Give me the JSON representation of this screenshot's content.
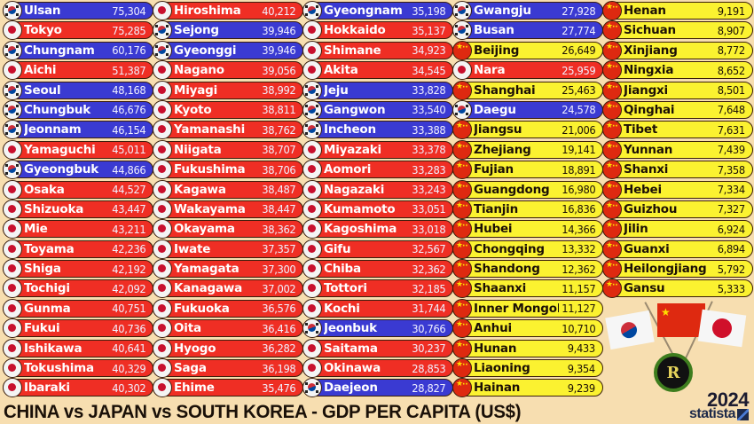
{
  "title": "CHINA vs JAPAN vs SOUTH KOREA - GDP PER CAPITA (US$)",
  "year": "2024",
  "source": "statista",
  "badge_letter": "R",
  "colors": {
    "south_korea": "#3a3ad2",
    "japan": "#ef2e24",
    "china": "#fbf230",
    "background": "#f7deb0"
  },
  "columns": [
    [
      {
        "name": "Ulsan",
        "value": "75,304",
        "country": "kr"
      },
      {
        "name": "Tokyo",
        "value": "75,285",
        "country": "jp"
      },
      {
        "name": "Chungnam",
        "value": "60,176",
        "country": "kr"
      },
      {
        "name": "Aichi",
        "value": "51,387",
        "country": "jp"
      },
      {
        "name": "Seoul",
        "value": "48,168",
        "country": "kr"
      },
      {
        "name": "Chungbuk",
        "value": "46,676",
        "country": "kr"
      },
      {
        "name": "Jeonnam",
        "value": "46,154",
        "country": "kr"
      },
      {
        "name": "Yamaguchi",
        "value": "45,011",
        "country": "jp"
      },
      {
        "name": "Gyeongbuk",
        "value": "44,866",
        "country": "kr"
      },
      {
        "name": "Osaka",
        "value": "44,527",
        "country": "jp"
      },
      {
        "name": "Shizuoka",
        "value": "43,447",
        "country": "jp"
      },
      {
        "name": "Mie",
        "value": "43,211",
        "country": "jp"
      },
      {
        "name": "Toyama",
        "value": "42,236",
        "country": "jp"
      },
      {
        "name": "Shiga",
        "value": "42,192",
        "country": "jp"
      },
      {
        "name": "Tochigi",
        "value": "42,092",
        "country": "jp"
      },
      {
        "name": "Gunma",
        "value": "40,751",
        "country": "jp"
      },
      {
        "name": "Fukui",
        "value": "40,736",
        "country": "jp"
      },
      {
        "name": "Ishikawa",
        "value": "40,641",
        "country": "jp"
      },
      {
        "name": "Tokushima",
        "value": "40,329",
        "country": "jp"
      },
      {
        "name": "Ibaraki",
        "value": "40,302",
        "country": "jp"
      }
    ],
    [
      {
        "name": "Hiroshima",
        "value": "40,212",
        "country": "jp"
      },
      {
        "name": "Sejong",
        "value": "39,946",
        "country": "kr"
      },
      {
        "name": "Gyeonggi",
        "value": "39,946",
        "country": "kr"
      },
      {
        "name": "Nagano",
        "value": "39,056",
        "country": "jp"
      },
      {
        "name": "Miyagi",
        "value": "38,992",
        "country": "jp"
      },
      {
        "name": "Kyoto",
        "value": "38,811",
        "country": "jp"
      },
      {
        "name": "Yamanashi",
        "value": "38,762",
        "country": "jp"
      },
      {
        "name": "Niigata",
        "value": "38,707",
        "country": "jp"
      },
      {
        "name": "Fukushima",
        "value": "38,706",
        "country": "jp"
      },
      {
        "name": "Kagawa",
        "value": "38,487",
        "country": "jp"
      },
      {
        "name": "Wakayama",
        "value": "38,447",
        "country": "jp"
      },
      {
        "name": "Okayama",
        "value": "38,362",
        "country": "jp"
      },
      {
        "name": "Iwate",
        "value": "37,357",
        "country": "jp"
      },
      {
        "name": "Yamagata",
        "value": "37,300",
        "country": "jp"
      },
      {
        "name": "Kanagawa",
        "value": "37,002",
        "country": "jp"
      },
      {
        "name": "Fukuoka",
        "value": "36,576",
        "country": "jp"
      },
      {
        "name": "Oita",
        "value": "36,416",
        "country": "jp"
      },
      {
        "name": "Hyogo",
        "value": "36,282",
        "country": "jp"
      },
      {
        "name": "Saga",
        "value": "36,198",
        "country": "jp"
      },
      {
        "name": "Ehime",
        "value": "35,476",
        "country": "jp"
      }
    ],
    [
      {
        "name": "Gyeongnam",
        "value": "35,198",
        "country": "kr"
      },
      {
        "name": "Hokkaido",
        "value": "35,137",
        "country": "jp"
      },
      {
        "name": "Shimane",
        "value": "34,923",
        "country": "jp"
      },
      {
        "name": "Akita",
        "value": "34,545",
        "country": "jp"
      },
      {
        "name": "Jeju",
        "value": "33,828",
        "country": "kr"
      },
      {
        "name": "Gangwon",
        "value": "33,540",
        "country": "kr"
      },
      {
        "name": "Incheon",
        "value": "33,388",
        "country": "kr"
      },
      {
        "name": "Miyazaki",
        "value": "33,378",
        "country": "jp"
      },
      {
        "name": "Aomori",
        "value": "33,283",
        "country": "jp"
      },
      {
        "name": "Nagazaki",
        "value": "33,243",
        "country": "jp"
      },
      {
        "name": "Kumamoto",
        "value": "33,051",
        "country": "jp"
      },
      {
        "name": "Kagoshima",
        "value": "33,018",
        "country": "jp"
      },
      {
        "name": "Gifu",
        "value": "32,567",
        "country": "jp"
      },
      {
        "name": "Chiba",
        "value": "32,362",
        "country": "jp"
      },
      {
        "name": "Tottori",
        "value": "32,185",
        "country": "jp"
      },
      {
        "name": "Kochi",
        "value": "31,744",
        "country": "jp"
      },
      {
        "name": "Jeonbuk",
        "value": "30,766",
        "country": "kr"
      },
      {
        "name": "Saitama",
        "value": "30,237",
        "country": "jp"
      },
      {
        "name": "Okinawa",
        "value": "28,853",
        "country": "jp"
      },
      {
        "name": "Daejeon",
        "value": "28,827",
        "country": "kr"
      }
    ],
    [
      {
        "name": "Gwangju",
        "value": "27,928",
        "country": "kr"
      },
      {
        "name": "Busan",
        "value": "27,774",
        "country": "kr"
      },
      {
        "name": "Beijing",
        "value": "26,649",
        "country": "cn"
      },
      {
        "name": "Nara",
        "value": "25,959",
        "country": "jp"
      },
      {
        "name": "Shanghai",
        "value": "25,463",
        "country": "cn"
      },
      {
        "name": "Daegu",
        "value": "24,578",
        "country": "kr"
      },
      {
        "name": "Jiangsu",
        "value": "21,006",
        "country": "cn"
      },
      {
        "name": "Zhejiang",
        "value": "19,141",
        "country": "cn"
      },
      {
        "name": "Fujian",
        "value": "18,891",
        "country": "cn"
      },
      {
        "name": "Guangdong",
        "value": "16,980",
        "country": "cn"
      },
      {
        "name": "Tianjin",
        "value": "16,836",
        "country": "cn"
      },
      {
        "name": "Hubei",
        "value": "14,366",
        "country": "cn"
      },
      {
        "name": "Chongqing",
        "value": "13,332",
        "country": "cn"
      },
      {
        "name": "Shandong",
        "value": "12,362",
        "country": "cn"
      },
      {
        "name": "Shaanxi",
        "value": "11,157",
        "country": "cn"
      },
      {
        "name": "Inner Mongolia",
        "value": "11,127",
        "country": "cn"
      },
      {
        "name": "Anhui",
        "value": "10,710",
        "country": "cn"
      },
      {
        "name": "Hunan",
        "value": "9,433",
        "country": "cn"
      },
      {
        "name": "Liaoning",
        "value": "9,354",
        "country": "cn"
      },
      {
        "name": "Hainan",
        "value": "9,239",
        "country": "cn"
      }
    ],
    [
      {
        "name": "Henan",
        "value": "9,191",
        "country": "cn"
      },
      {
        "name": "Sichuan",
        "value": "8,907",
        "country": "cn"
      },
      {
        "name": "Xinjiang",
        "value": "8,772",
        "country": "cn"
      },
      {
        "name": "Ningxia",
        "value": "8,652",
        "country": "cn"
      },
      {
        "name": "Jiangxi",
        "value": "8,501",
        "country": "cn"
      },
      {
        "name": "Qinghai",
        "value": "7,648",
        "country": "cn"
      },
      {
        "name": "Tibet",
        "value": "7,631",
        "country": "cn"
      },
      {
        "name": "Yunnan",
        "value": "7,439",
        "country": "cn"
      },
      {
        "name": "Shanxi",
        "value": "7,358",
        "country": "cn"
      },
      {
        "name": "Hebei",
        "value": "7,334",
        "country": "cn"
      },
      {
        "name": "Guizhou",
        "value": "7,327",
        "country": "cn"
      },
      {
        "name": "Jilin",
        "value": "6,924",
        "country": "cn"
      },
      {
        "name": "Guanxi",
        "value": "6,894",
        "country": "cn"
      },
      {
        "name": "Heilongjiang",
        "value": "5,792",
        "country": "cn"
      },
      {
        "name": "Gansu",
        "value": "5,333",
        "country": "cn"
      }
    ]
  ],
  "chart_data": {
    "type": "bar",
    "title": "CHINA vs JAPAN vs SOUTH KOREA - GDP PER CAPITA (US$)",
    "subtitle": "2024",
    "source": "statista",
    "xlabel": "",
    "ylabel": "GDP per capita (US$)",
    "legend": [
      {
        "name": "South Korea",
        "color": "#3a3ad2"
      },
      {
        "name": "Japan",
        "color": "#ef2e24"
      },
      {
        "name": "China",
        "color": "#fbf230"
      }
    ],
    "categories": [
      "Ulsan",
      "Tokyo",
      "Chungnam",
      "Aichi",
      "Seoul",
      "Chungbuk",
      "Jeonnam",
      "Yamaguchi",
      "Gyeongbuk",
      "Osaka",
      "Shizuoka",
      "Mie",
      "Toyama",
      "Shiga",
      "Tochigi",
      "Gunma",
      "Fukui",
      "Ishikawa",
      "Tokushima",
      "Ibaraki",
      "Hiroshima",
      "Sejong",
      "Gyeonggi",
      "Nagano",
      "Miyagi",
      "Kyoto",
      "Yamanashi",
      "Niigata",
      "Fukushima",
      "Kagawa",
      "Wakayama",
      "Okayama",
      "Iwate",
      "Yamagata",
      "Kanagawa",
      "Fukuoka",
      "Oita",
      "Hyogo",
      "Saga",
      "Ehime",
      "Gyeongnam",
      "Hokkaido",
      "Shimane",
      "Akita",
      "Jeju",
      "Gangwon",
      "Incheon",
      "Miyazaki",
      "Aomori",
      "Nagazaki",
      "Kumamoto",
      "Kagoshima",
      "Gifu",
      "Chiba",
      "Tottori",
      "Kochi",
      "Jeonbuk",
      "Saitama",
      "Okinawa",
      "Daejeon",
      "Gwangju",
      "Busan",
      "Beijing",
      "Nara",
      "Shanghai",
      "Daegu",
      "Jiangsu",
      "Zhejiang",
      "Fujian",
      "Guangdong",
      "Tianjin",
      "Hubei",
      "Chongqing",
      "Shandong",
      "Shaanxi",
      "Inner Mongolia",
      "Anhui",
      "Hunan",
      "Liaoning",
      "Hainan",
      "Henan",
      "Sichuan",
      "Xinjiang",
      "Ningxia",
      "Jiangxi",
      "Qinghai",
      "Tibet",
      "Yunnan",
      "Shanxi",
      "Hebei",
      "Guizhou",
      "Jilin",
      "Guanxi",
      "Heilongjiang",
      "Gansu"
    ],
    "values": [
      75304,
      75285,
      60176,
      51387,
      48168,
      46676,
      46154,
      45011,
      44866,
      44527,
      43447,
      43211,
      42236,
      42192,
      42092,
      40751,
      40736,
      40641,
      40329,
      40302,
      40212,
      39946,
      39946,
      39056,
      38992,
      38811,
      38762,
      38707,
      38706,
      38487,
      38447,
      38362,
      37357,
      37300,
      37002,
      36576,
      36416,
      36282,
      36198,
      35476,
      35198,
      35137,
      34923,
      34545,
      33828,
      33540,
      33388,
      33378,
      33283,
      33243,
      33051,
      33018,
      32567,
      32362,
      32185,
      31744,
      30766,
      30237,
      28853,
      28827,
      27928,
      27774,
      26649,
      25959,
      25463,
      24578,
      21006,
      19141,
      18891,
      16980,
      16836,
      14366,
      13332,
      12362,
      11157,
      11127,
      10710,
      9433,
      9354,
      9239,
      9191,
      8907,
      8772,
      8652,
      8501,
      7648,
      7631,
      7439,
      7358,
      7334,
      7327,
      6924,
      6894,
      5792,
      5333
    ],
    "country": [
      "KR",
      "JP",
      "KR",
      "JP",
      "KR",
      "KR",
      "KR",
      "JP",
      "KR",
      "JP",
      "JP",
      "JP",
      "JP",
      "JP",
      "JP",
      "JP",
      "JP",
      "JP",
      "JP",
      "JP",
      "JP",
      "KR",
      "KR",
      "JP",
      "JP",
      "JP",
      "JP",
      "JP",
      "JP",
      "JP",
      "JP",
      "JP",
      "JP",
      "JP",
      "JP",
      "JP",
      "JP",
      "JP",
      "JP",
      "JP",
      "KR",
      "JP",
      "JP",
      "JP",
      "KR",
      "KR",
      "KR",
      "JP",
      "JP",
      "JP",
      "JP",
      "JP",
      "JP",
      "JP",
      "JP",
      "JP",
      "KR",
      "JP",
      "JP",
      "KR",
      "KR",
      "KR",
      "CN",
      "JP",
      "CN",
      "KR",
      "CN",
      "CN",
      "CN",
      "CN",
      "CN",
      "CN",
      "CN",
      "CN",
      "CN",
      "CN",
      "CN",
      "CN",
      "CN",
      "CN",
      "CN",
      "CN",
      "CN",
      "CN",
      "CN",
      "CN",
      "CN",
      "CN",
      "CN",
      "CN",
      "CN",
      "CN",
      "CN",
      "CN",
      "CN"
    ],
    "layout": "ranked table in 5 columns, sorted descending",
    "grid": false
  }
}
